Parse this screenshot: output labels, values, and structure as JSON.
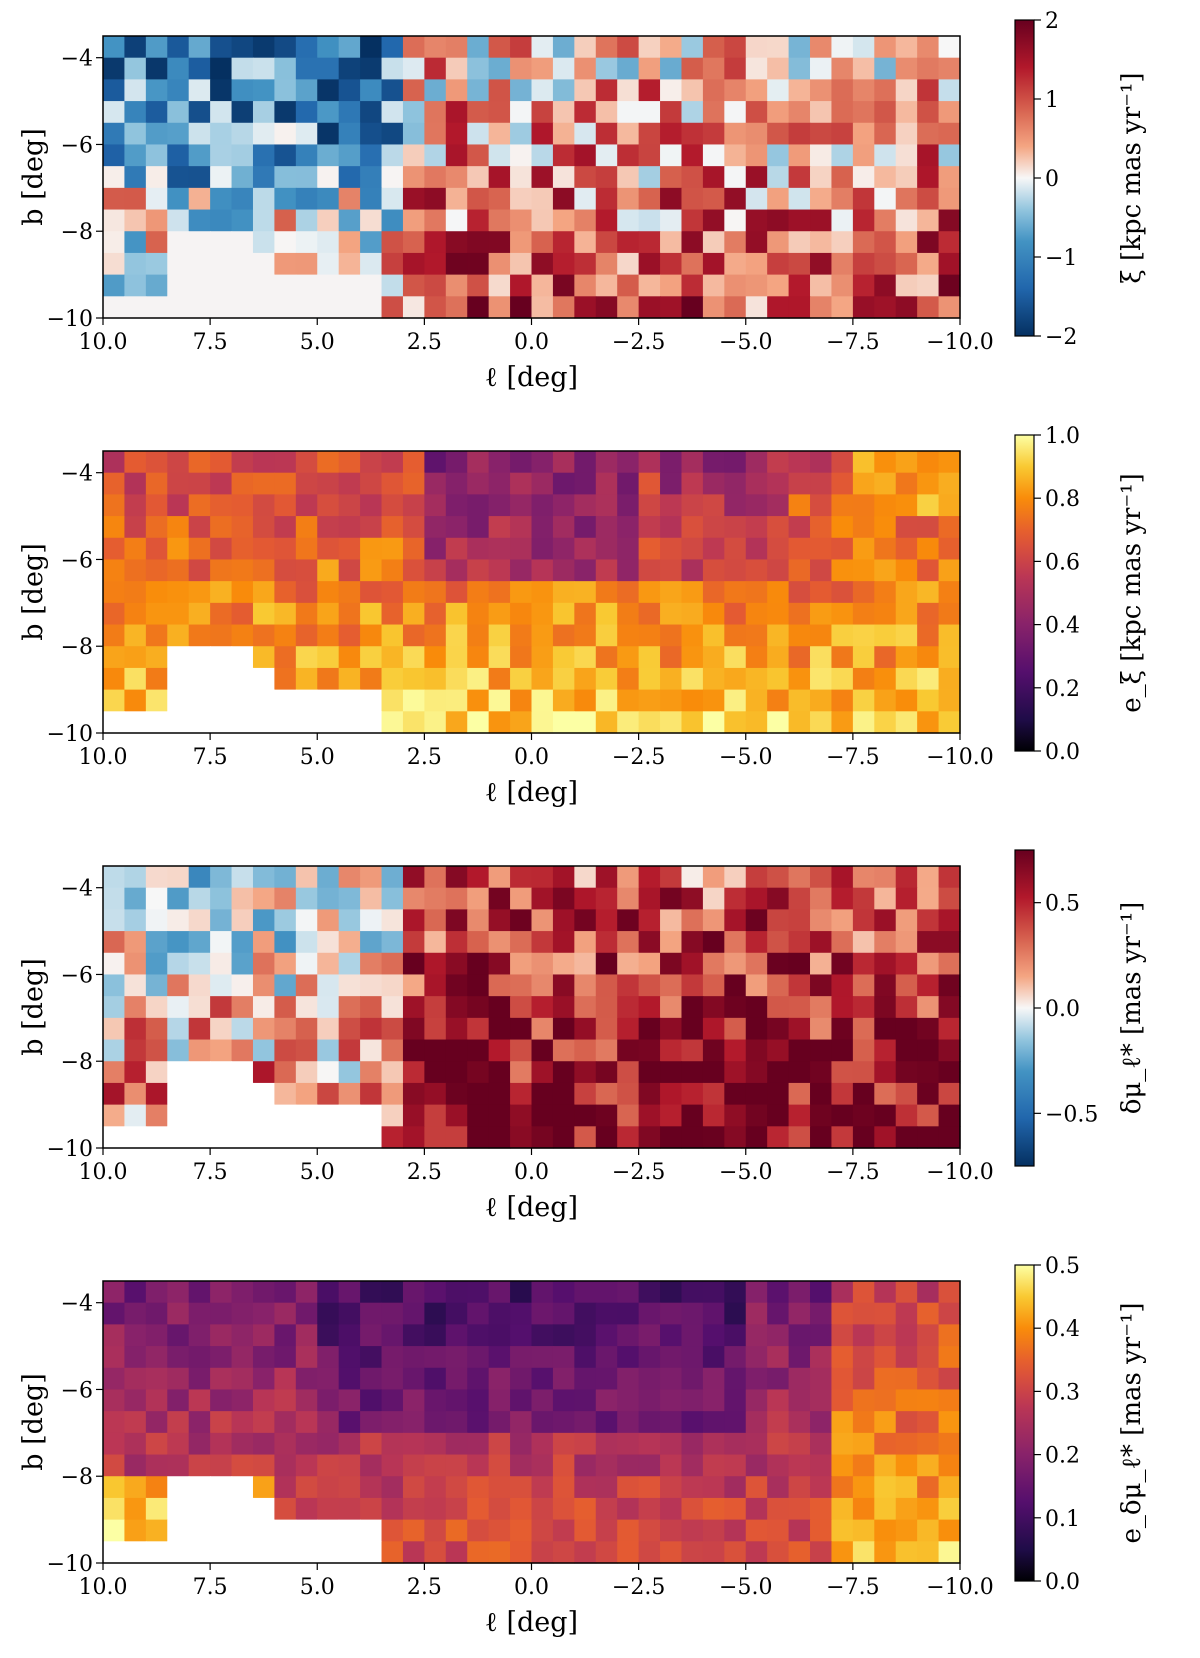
{
  "chart_data": [
    {
      "type": "heatmap",
      "xlabel": "ℓ [deg]",
      "ylabel": "b [deg]",
      "xlim": [
        10.0,
        -10.0
      ],
      "ylim": [
        -10,
        -3.5
      ],
      "xticks": [
        "10.0",
        "7.5",
        "5.0",
        "2.5",
        "0.0",
        "−2.5",
        "−5.0",
        "−7.5",
        "−10.0"
      ],
      "yticks": [
        "−4",
        "−6",
        "−8",
        "−10"
      ],
      "colorbar": {
        "label": "ξ [kpc mas yr⁻¹]",
        "ticks": [
          "2",
          "1",
          "0",
          "−1",
          "−2"
        ],
        "range": [
          -2,
          2
        ],
        "colormap": "diverging-blue-red"
      },
      "ncols": 40,
      "nrows": 13,
      "cell_size_deg": 0.5,
      "values_description": "signed values between −2 and 2 on a ℓ×b grid; lower-left corner empty",
      "grid": false
    },
    {
      "type": "heatmap",
      "xlabel": "ℓ [deg]",
      "ylabel": "b [deg]",
      "xlim": [
        10.0,
        -10.0
      ],
      "ylim": [
        -10,
        -3.5
      ],
      "xticks": [
        "10.0",
        "7.5",
        "5.0",
        "2.5",
        "0.0",
        "−2.5",
        "−5.0",
        "−7.5",
        "−10.0"
      ],
      "yticks": [
        "−4",
        "−6",
        "−8",
        "−10"
      ],
      "colorbar": {
        "label": "e_ξ [kpc mas yr⁻¹]",
        "ticks": [
          "1.0",
          "0.8",
          "0.6",
          "0.4",
          "0.2",
          "0.0"
        ],
        "range": [
          0,
          1
        ],
        "colormap": "inferno"
      },
      "ncols": 40,
      "nrows": 13,
      "cell_size_deg": 0.5,
      "grid": false
    },
    {
      "type": "heatmap",
      "xlabel": "ℓ [deg]",
      "ylabel": "b [deg]",
      "xlim": [
        10.0,
        -10.0
      ],
      "ylim": [
        -10,
        -3.5
      ],
      "xticks": [
        "10.0",
        "7.5",
        "5.0",
        "2.5",
        "0.0",
        "−2.5",
        "−5.0",
        "−7.5",
        "−10.0"
      ],
      "yticks": [
        "−4",
        "−6",
        "−8",
        "−10"
      ],
      "colorbar": {
        "label": "δμ_ℓ* [mas yr⁻¹]",
        "ticks": [
          "0.5",
          "0.0",
          "−0.5"
        ],
        "range": [
          -0.75,
          0.75
        ],
        "colormap": "diverging-blue-red"
      },
      "ncols": 40,
      "nrows": 13,
      "cell_size_deg": 0.5,
      "grid": false
    },
    {
      "type": "heatmap",
      "xlabel": "ℓ [deg]",
      "ylabel": "b [deg]",
      "xlim": [
        10.0,
        -10.0
      ],
      "ylim": [
        -10,
        -3.5
      ],
      "xticks": [
        "10.0",
        "7.5",
        "5.0",
        "2.5",
        "0.0",
        "−2.5",
        "−5.0",
        "−7.5",
        "−10.0"
      ],
      "yticks": [
        "−4",
        "−6",
        "−8",
        "−10"
      ],
      "colorbar": {
        "label": "e_δμ_ℓ* [mas yr⁻¹]",
        "ticks": [
          "0.5",
          "0.4",
          "0.3",
          "0.2",
          "0.1",
          "0.0"
        ],
        "range": [
          0,
          0.5
        ],
        "colormap": "inferno"
      },
      "ncols": 40,
      "nrows": 13,
      "cell_size_deg": 0.5,
      "grid": false
    }
  ]
}
